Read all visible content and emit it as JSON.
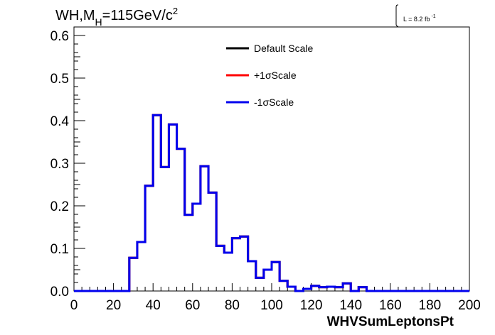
{
  "chart_data": {
    "type": "line",
    "title_main": "WH,M",
    "title_sub": "H",
    "title_rest": "=115GeV/c",
    "title_sup": "2",
    "lumi_label": "L = 8.2 fb",
    "lumi_sup": "-1",
    "xlabel": "WHVSumLeptonsPt",
    "xlim": [
      0,
      200
    ],
    "ylim": [
      0,
      0.62
    ],
    "x_ticks": [
      "0",
      "20",
      "40",
      "60",
      "80",
      "100",
      "120",
      "140",
      "160",
      "180",
      "200"
    ],
    "y_ticks": [
      "0.0",
      "0.1",
      "0.2",
      "0.3",
      "0.4",
      "0.5",
      "0.6"
    ],
    "bin_width": 4,
    "bin_edges_start": 0,
    "legend_position": "top-right",
    "series": [
      {
        "name": "Default Scale",
        "color": "#000000",
        "values": [
          0,
          0,
          0,
          0,
          0,
          0,
          0,
          0.078,
          0.115,
          0.247,
          0.413,
          0.291,
          0.391,
          0.334,
          0.179,
          0.205,
          0.293,
          0.231,
          0.106,
          0.09,
          0.124,
          0.128,
          0.07,
          0.031,
          0.05,
          0.068,
          0.024,
          0.01,
          0,
          0.005,
          0.012,
          0.009,
          0.01,
          0.009,
          0.018,
          0,
          0.009,
          0,
          0,
          0,
          0,
          0,
          0,
          0,
          0,
          0,
          0,
          0,
          0,
          0
        ]
      },
      {
        "name": "+1σScale",
        "color": "#ff0000",
        "values": [
          0,
          0,
          0,
          0,
          0,
          0,
          0,
          0.078,
          0.115,
          0.247,
          0.413,
          0.291,
          0.391,
          0.334,
          0.179,
          0.205,
          0.293,
          0.231,
          0.106,
          0.09,
          0.124,
          0.128,
          0.07,
          0.031,
          0.05,
          0.068,
          0.024,
          0.01,
          0,
          0.005,
          0.012,
          0.009,
          0.01,
          0.009,
          0.018,
          0,
          0.009,
          0,
          0,
          0,
          0,
          0,
          0,
          0,
          0,
          0,
          0,
          0,
          0,
          0
        ]
      },
      {
        "name": "-1σScale",
        "color": "#0000ee",
        "values": [
          0,
          0,
          0,
          0,
          0,
          0,
          0,
          0.078,
          0.115,
          0.247,
          0.413,
          0.291,
          0.391,
          0.334,
          0.179,
          0.205,
          0.293,
          0.231,
          0.106,
          0.09,
          0.124,
          0.128,
          0.07,
          0.031,
          0.05,
          0.068,
          0.024,
          0.01,
          0,
          0.005,
          0.012,
          0.009,
          0.01,
          0.009,
          0.018,
          0,
          0.009,
          0,
          0,
          0,
          0,
          0,
          0,
          0,
          0,
          0,
          0,
          0,
          0,
          0
        ]
      }
    ]
  }
}
